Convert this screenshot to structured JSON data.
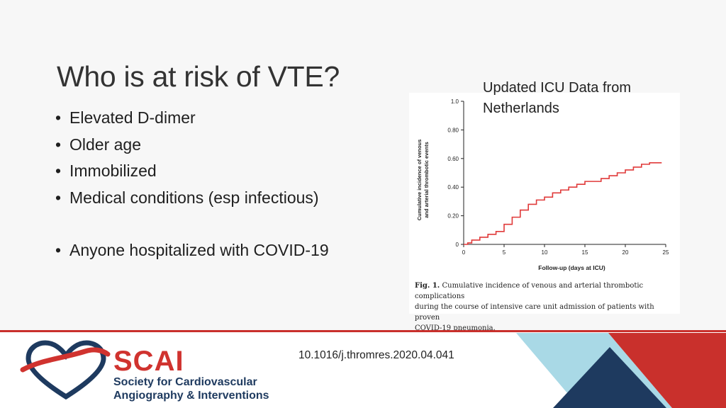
{
  "slide": {
    "title": "Who is at risk of VTE?",
    "bullets": [
      "Elevated D-dimer",
      "Older age",
      "Immobilized",
      "Medical conditions (esp infectious)",
      "Anyone hospitalized with COVID-19"
    ],
    "annotation_line1": "Updated ICU Data from",
    "annotation_line2": "Netherlands",
    "doi": "10.1016/j.thromres.2020.04.041"
  },
  "figure": {
    "caption_label": "Fig. 1.",
    "caption_line1": "Cumulative incidence of venous and arterial thrombotic complications",
    "caption_line2": "during the course of intensive care unit admission of patients with proven",
    "caption_line3": "COVID-19 pneumonia."
  },
  "logo": {
    "name": "SCAI",
    "line1": "Society for Cardiovascular",
    "line2": "Angiography & Interventions"
  },
  "colors": {
    "accent_red": "#c9302c",
    "navy": "#1e3a5f",
    "light_blue": "#a9d9e6",
    "line_red": "#e03a3a"
  },
  "chart_data": {
    "type": "line",
    "step": true,
    "title": "",
    "xlabel": "Follow-up (days at ICU)",
    "ylabel_line1": "Cumulative incidence of venous",
    "ylabel_line2": "and arterial thrombotic events",
    "xlim": [
      0,
      25
    ],
    "ylim": [
      0,
      1.0
    ],
    "xticks": [
      0,
      5,
      10,
      15,
      20,
      25
    ],
    "xtick_labels": [
      "0",
      "5",
      "10",
      "15",
      "20",
      "25"
    ],
    "yticks": [
      0,
      0.2,
      0.4,
      0.6,
      0.8,
      1.0
    ],
    "ytick_labels": [
      "0",
      "0.20",
      "0.40",
      "0.60",
      "0.80",
      "1.0"
    ],
    "series": [
      {
        "name": "Cumulative incidence",
        "x": [
          0,
          0.5,
          1,
          2,
          3,
          4,
          5,
          6,
          7,
          8,
          9,
          10,
          11,
          12,
          13,
          14,
          15,
          17,
          18,
          19,
          20,
          21,
          22,
          23,
          24.5
        ],
        "y": [
          0,
          0.01,
          0.03,
          0.05,
          0.07,
          0.09,
          0.14,
          0.19,
          0.24,
          0.28,
          0.31,
          0.33,
          0.36,
          0.38,
          0.4,
          0.42,
          0.44,
          0.46,
          0.48,
          0.5,
          0.52,
          0.54,
          0.56,
          0.57,
          0.57
        ]
      }
    ]
  }
}
